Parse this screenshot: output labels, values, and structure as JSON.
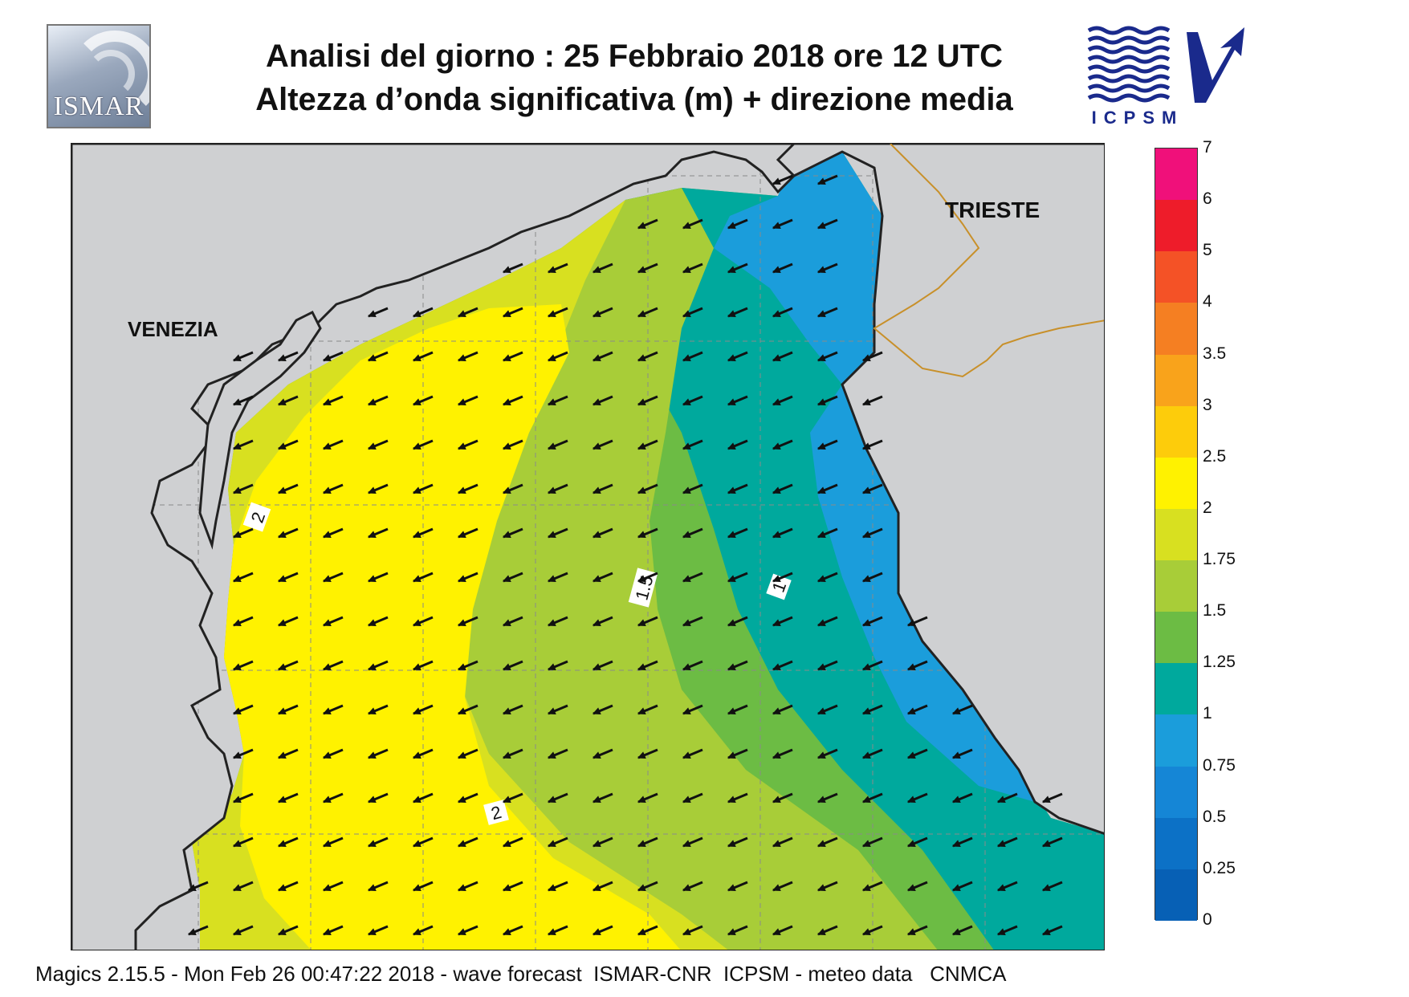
{
  "header": {
    "title_line1": "Analisi del giorno :  25  Febbraio 2018   ore 12 UTC",
    "title_line2": "Altezza d’onda significativa (m) + direzione media",
    "logo_left_text": "ISMAR",
    "logo_right_text": "ICPSM"
  },
  "map": {
    "cities": [
      {
        "id": "venezia",
        "name": "VENEZIA"
      },
      {
        "id": "trieste",
        "name": "TRIESTE"
      }
    ],
    "contour_labels": [
      "2",
      "1.5",
      "1",
      "2"
    ],
    "mean_wave_direction": "from north-east (arrows pointing south-west)"
  },
  "colorbar": {
    "unit": "m",
    "levels": [
      "7",
      "6",
      "5",
      "4",
      "3.5",
      "3",
      "2.5",
      "2",
      "1.75",
      "1.5",
      "1.25",
      "1",
      "0.75",
      "0.5",
      "0.25",
      "0"
    ],
    "colors": [
      "#f0107a",
      "#ee1c2a",
      "#f45226",
      "#f57f22",
      "#f9a31b",
      "#fdcc0b",
      "#fff200",
      "#d8e020",
      "#a8cd38",
      "#6cbc44",
      "#00a99d",
      "#1b9ddb",
      "#1586d6",
      "#0c71c6",
      "#0760b5"
    ]
  },
  "footer": {
    "text": "Magics 2.15.5 - Mon Feb 26 00:47:22 2018 - wave forecast  ISMAR-CNR  ICPSM - meteo data   CNMCA"
  }
}
